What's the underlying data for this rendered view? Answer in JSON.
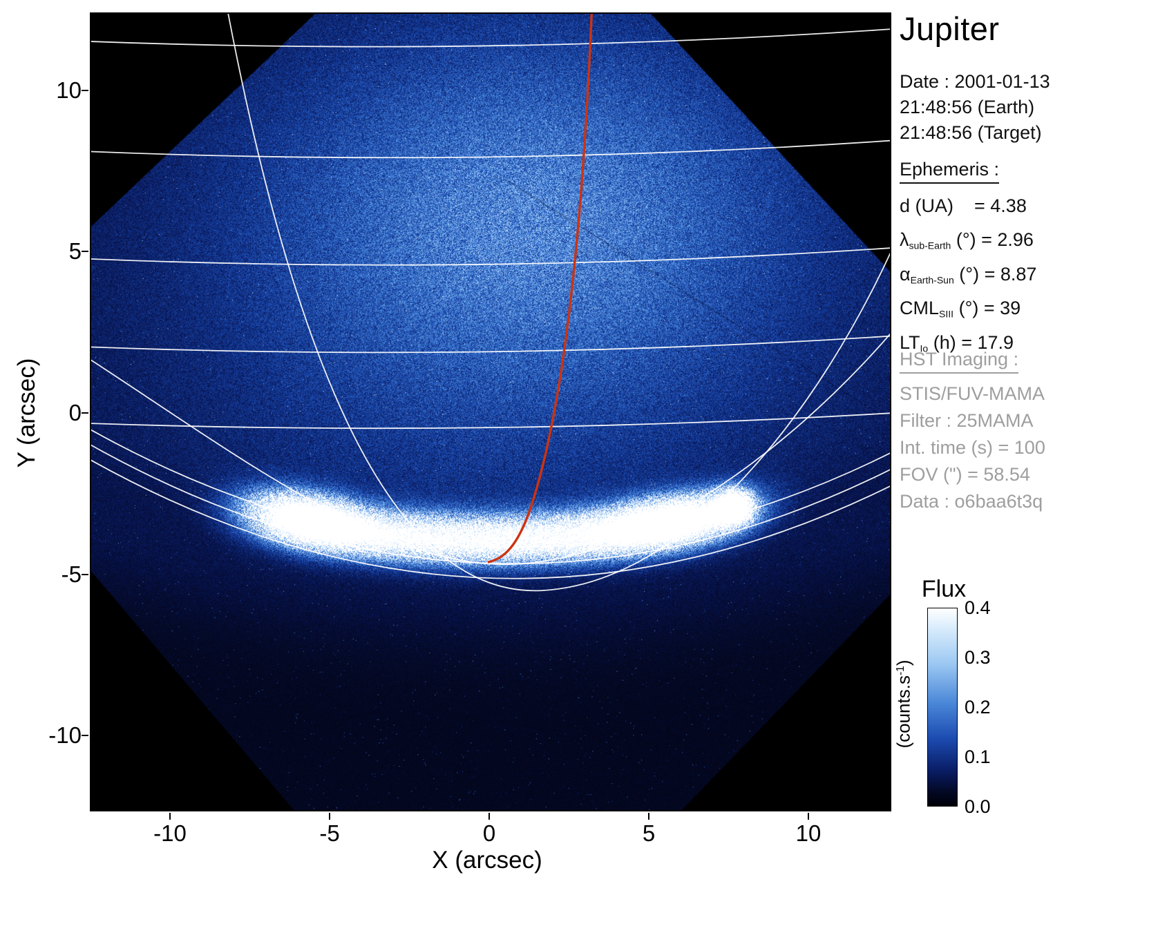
{
  "plot": {
    "x_axis": {
      "label": "X (arcsec)",
      "ticks": [
        "-10",
        "-5",
        "0",
        "5",
        "10"
      ]
    },
    "y_axis": {
      "label": "Y (arcsec)",
      "ticks": [
        "10",
        "5",
        "0",
        "-5",
        "-10"
      ]
    }
  },
  "info_panel": {
    "title": "Jupiter",
    "datetime": [
      "Date : 2001-01-13",
      "21:48:56 (Earth)",
      "21:48:56 (Target)"
    ],
    "ephemeris": {
      "heading": "Ephemeris :",
      "rows": [
        {
          "pre": "d (UA)",
          "sub": "",
          "post": "    = 4.38"
        },
        {
          "pre": "λ",
          "sub": "sub-Earth",
          "post": " (°) = 2.96"
        },
        {
          "pre": "α",
          "sub": "Earth-Sun",
          "post": " (°) = 8.87"
        },
        {
          "pre": "CML",
          "sub": "SIII",
          "post": " (°) = 39"
        },
        {
          "pre": "LT",
          "sub": "Io",
          "post": " (h) = 17.9"
        }
      ]
    },
    "hst_imaging": {
      "heading": "HST Imaging :",
      "rows": [
        "STIS/FUV-MAMA",
        "Filter : 25MAMA",
        "Int. time (s) = 100",
        "FOV (\") = 58.54",
        "Data : o6baa6t3q"
      ]
    }
  },
  "colorbar": {
    "title": "Flux",
    "ticks": [
      "0.4",
      "0.3",
      "0.2",
      "0.1",
      "0.0"
    ],
    "unit": {
      "pre": "(counts.s",
      "sup": "-1",
      "post": ")"
    }
  },
  "colors": {
    "io_track": "#cc3311",
    "graticule": "#ffffff",
    "sky_background": "#000000",
    "muted_text": "#9e9e9e"
  },
  "chart_data": {
    "type": "heatmap",
    "title": "Jupiter",
    "xlabel": "X (arcsec)",
    "ylabel": "Y (arcsec)",
    "xlim": [
      -12.5,
      12.6
    ],
    "ylim": [
      -12.4,
      12.4
    ],
    "x_ticks": [
      -10,
      -5,
      0,
      5,
      10
    ],
    "y_ticks": [
      10,
      5,
      0,
      -5,
      -10
    ],
    "grid": false,
    "colorbar": {
      "label": "Flux",
      "unit": "counts.s-1",
      "range": [
        0.0,
        0.4
      ],
      "ticks": [
        0.0,
        0.1,
        0.2,
        0.3,
        0.4
      ],
      "colormap": "black -> dark blue -> blue -> light blue -> white"
    },
    "observation": {
      "date": "2001-01-13",
      "time_earth": "21:48:56",
      "time_target": "21:48:56",
      "d_UA": 4.38,
      "lambda_sub_earth_deg": 2.96,
      "alpha_earth_sun_deg": 8.87,
      "CML_SIII_deg": 39,
      "LT_Io_h": 17.9,
      "instrument": "STIS/FUV-MAMA",
      "filter": "25MAMA",
      "int_time_s": 100,
      "fov_arcsec": 58.54,
      "data_id": "o6baa6t3q"
    },
    "features": [
      {
        "name": "detector-field",
        "desc": "square FUV-MAMA detector field rotated ~45 deg; noisy blue counts inside, pure black outside the four diagonal edges"
      },
      {
        "name": "disk-dayglow",
        "desc": "diffuse bright blue glow over upper half, brightest near (2, 6.5) arcsec"
      },
      {
        "name": "auroral-oval",
        "desc": "saturated white auroral emission arc from about (-8, -3.3) through (0, -3.9) to (6, -3.3)"
      },
      {
        "name": "io-footprint-spot",
        "desc": "compact bright spot near (7.7, -2.9)"
      },
      {
        "name": "graticule",
        "desc": "white planetocentric latitude/longitude grid; parallels nearly horizontal above, curving into the limb fan near the pole around (0, -4)"
      },
      {
        "name": "io-flux-tube-path",
        "desc": "red meridian track from top of frame (x ~ 3.2) curving down to (0, -4.5)",
        "color": "#cc3311"
      }
    ]
  }
}
